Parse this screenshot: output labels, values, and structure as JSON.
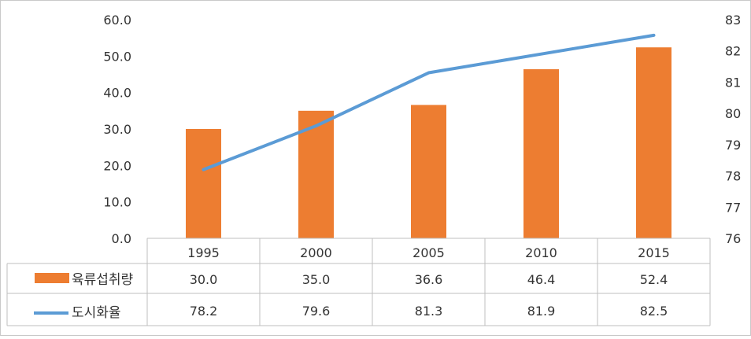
{
  "chart_data": {
    "type": "bar",
    "title": "",
    "categories": [
      "1995",
      "2000",
      "2005",
      "2010",
      "2015"
    ],
    "series": [
      {
        "name": "육류섭취량",
        "type": "bar",
        "axis": "left",
        "color": "#ED7D31",
        "values": [
          30.0,
          35.0,
          36.6,
          46.4,
          52.4
        ],
        "labels": [
          "30.0",
          "35.0",
          "36.6",
          "46.4",
          "52.4"
        ]
      },
      {
        "name": "도시화율",
        "type": "line",
        "axis": "right",
        "color": "#5B9BD5",
        "values": [
          78.2,
          79.6,
          81.3,
          81.9,
          82.5
        ],
        "labels": [
          "78.2",
          "79.6",
          "81.3",
          "81.9",
          "82.5"
        ]
      }
    ],
    "y_left": {
      "range": [
        0,
        60
      ],
      "ticks": [
        0,
        10,
        20,
        30,
        40,
        50,
        60
      ],
      "tick_labels": [
        "0.0",
        "10.0",
        "20.0",
        "30.0",
        "40.0",
        "50.0",
        "60.0"
      ]
    },
    "y_right": {
      "range": [
        76,
        83
      ],
      "ticks": [
        76,
        77,
        78,
        79,
        80,
        81,
        82,
        83
      ],
      "tick_labels": [
        "76",
        "77",
        "78",
        "79",
        "80",
        "81",
        "82",
        "83"
      ]
    },
    "grid": false,
    "data_table": true,
    "legend": "data-table"
  }
}
